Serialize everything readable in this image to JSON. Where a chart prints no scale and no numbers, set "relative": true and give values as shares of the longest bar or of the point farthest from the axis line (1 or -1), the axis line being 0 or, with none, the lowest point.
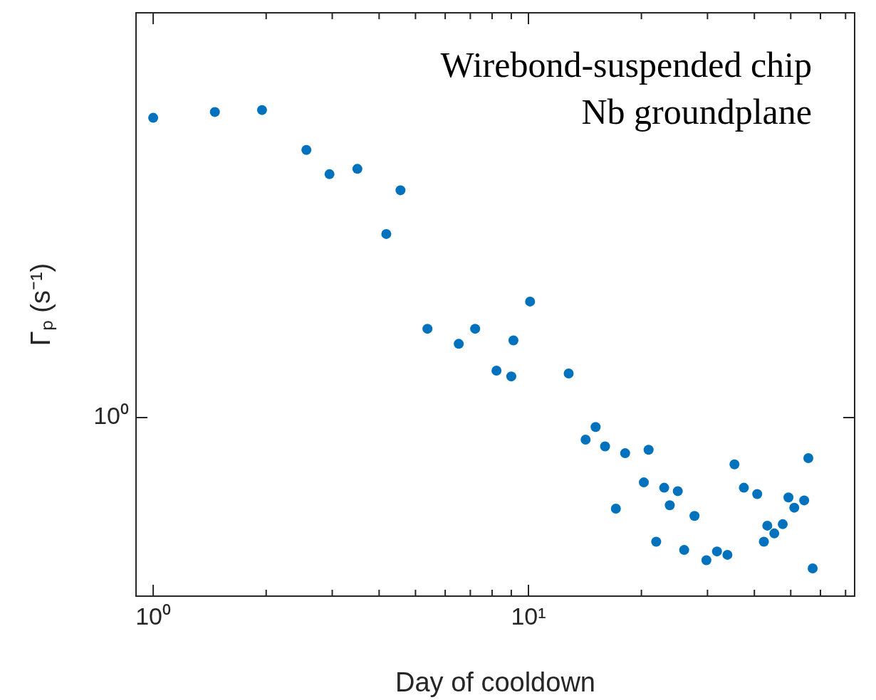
{
  "chart_data": {
    "type": "scatter",
    "xlabel": "Day of cooldown",
    "ylabel": "Γₚ (s⁻¹)",
    "relative": true,
    "annotations": [
      "10⁰",
      "Wirebond-suspended chip",
      "Nb groundplane"
    ],
    "log": "x",
    "grid": false,
    "legend": false,
    "marker": "circle",
    "xlim": [
      0.9,
      74
    ],
    "xticks": [
      {
        "value": 1,
        "label": "10⁰"
      },
      {
        "value": 2,
        "label": null
      },
      {
        "value": 3,
        "label": null
      },
      {
        "value": 4,
        "label": null
      },
      {
        "value": 5,
        "label": null
      },
      {
        "value": 6,
        "label": null
      },
      {
        "value": 7,
        "label": null
      },
      {
        "value": 8,
        "label": null
      },
      {
        "value": 9,
        "label": null
      },
      {
        "value": 10,
        "label": "10¹"
      },
      {
        "value": 20,
        "label": null
      },
      {
        "value": 30,
        "label": null
      },
      {
        "value": 40,
        "label": null
      },
      {
        "value": 50,
        "label": null
      },
      {
        "value": 60,
        "label": null
      },
      {
        "value": 70,
        "label": null
      }
    ],
    "series": [
      {
        "color": "#0072bd",
        "x": [
          1.0,
          1.46,
          1.95,
          2.56,
          2.95,
          3.5,
          4.56,
          4.18,
          5.38,
          6.52,
          7.21,
          9.12,
          8.22,
          9.0,
          10.1,
          12.8,
          14.2,
          15.1,
          16.0,
          17.1,
          18.1,
          20.3,
          20.9,
          21.9,
          23.0,
          23.8,
          25.0,
          26.0,
          27.7,
          29.8,
          31.8,
          33.9,
          35.4,
          37.5,
          40.7,
          42.4,
          43.3,
          45.2,
          47.6,
          49.3,
          51.1,
          54.3,
          55.7,
          57.2
        ],
        "values": [
          0.984,
          0.996,
          1,
          0.918,
          0.868,
          0.879,
          0.835,
          0.745,
          0.55,
          0.519,
          0.55,
          0.526,
          0.464,
          0.452,
          0.606,
          0.458,
          0.322,
          0.348,
          0.308,
          0.18,
          0.294,
          0.234,
          0.301,
          0.112,
          0.223,
          0.187,
          0.216,
          0.095,
          0.165,
          0.074,
          0.092,
          0.085,
          0.271,
          0.223,
          0.21,
          0.112,
          0.145,
          0.129,
          0.148,
          0.203,
          0.182,
          0.197,
          0.284,
          0.057
        ]
      }
    ]
  }
}
